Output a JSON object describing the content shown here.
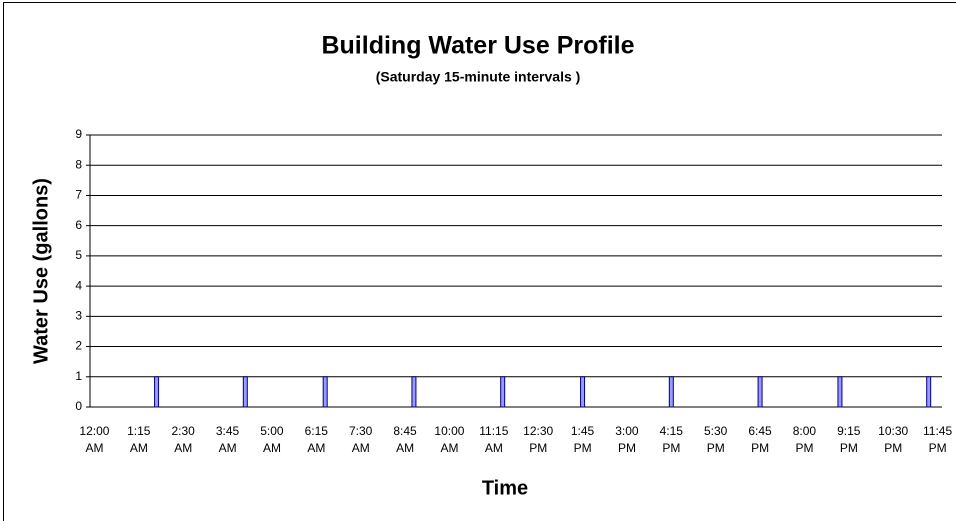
{
  "chart_data": {
    "type": "bar",
    "title": "Building Water Use Profile",
    "subtitle": "(Saturday 15-minute intervals )",
    "x_label": "Time",
    "y_label": "Water Use (gallons)",
    "categories": [
      "12:00 AM",
      null,
      null,
      null,
      null,
      "1:15 AM",
      null,
      null,
      null,
      null,
      "2:30 AM",
      null,
      null,
      null,
      null,
      "3:45 AM",
      null,
      null,
      null,
      null,
      "5:00 AM",
      null,
      null,
      null,
      null,
      "6:15 AM",
      null,
      null,
      null,
      null,
      "7:30 AM",
      null,
      null,
      null,
      null,
      "8:45 AM",
      null,
      null,
      null,
      null,
      "10:00 AM",
      null,
      null,
      null,
      null,
      "11:15 AM",
      null,
      null,
      null,
      null,
      "12:30 PM",
      null,
      null,
      null,
      null,
      "1:45 PM",
      null,
      null,
      null,
      null,
      "3:00 PM",
      null,
      null,
      null,
      null,
      "4:15 PM",
      null,
      null,
      null,
      null,
      "5:30 PM",
      null,
      null,
      null,
      null,
      "6:45 PM",
      null,
      null,
      null,
      null,
      "8:00 PM",
      null,
      null,
      null,
      null,
      "9:15 PM",
      null,
      null,
      null,
      null,
      "10:30 PM",
      null,
      null,
      null,
      null,
      "11:45 PM"
    ],
    "values": [
      0,
      0,
      0,
      0,
      0,
      0,
      0,
      1,
      0,
      0,
      0,
      0,
      0,
      0,
      0,
      0,
      0,
      1,
      0,
      0,
      0,
      0,
      0,
      0,
      0,
      0,
      1,
      0,
      0,
      0,
      0,
      0,
      0,
      0,
      0,
      0,
      1,
      0,
      0,
      0,
      0,
      0,
      0,
      0,
      0,
      0,
      1,
      0,
      0,
      0,
      0,
      0,
      0,
      0,
      0,
      1,
      0,
      0,
      0,
      0,
      0,
      0,
      0,
      0,
      0,
      1,
      0,
      0,
      0,
      0,
      0,
      0,
      0,
      0,
      0,
      1,
      0,
      0,
      0,
      0,
      0,
      0,
      0,
      0,
      1,
      0,
      0,
      0,
      0,
      0,
      0,
      0,
      0,
      0,
      1,
      0
    ],
    "color": "#9999ff",
    "ylim": [
      0,
      9
    ],
    "yticks": [
      0,
      1,
      2,
      3,
      4,
      5,
      6,
      7,
      8,
      9
    ],
    "grid": true
  }
}
